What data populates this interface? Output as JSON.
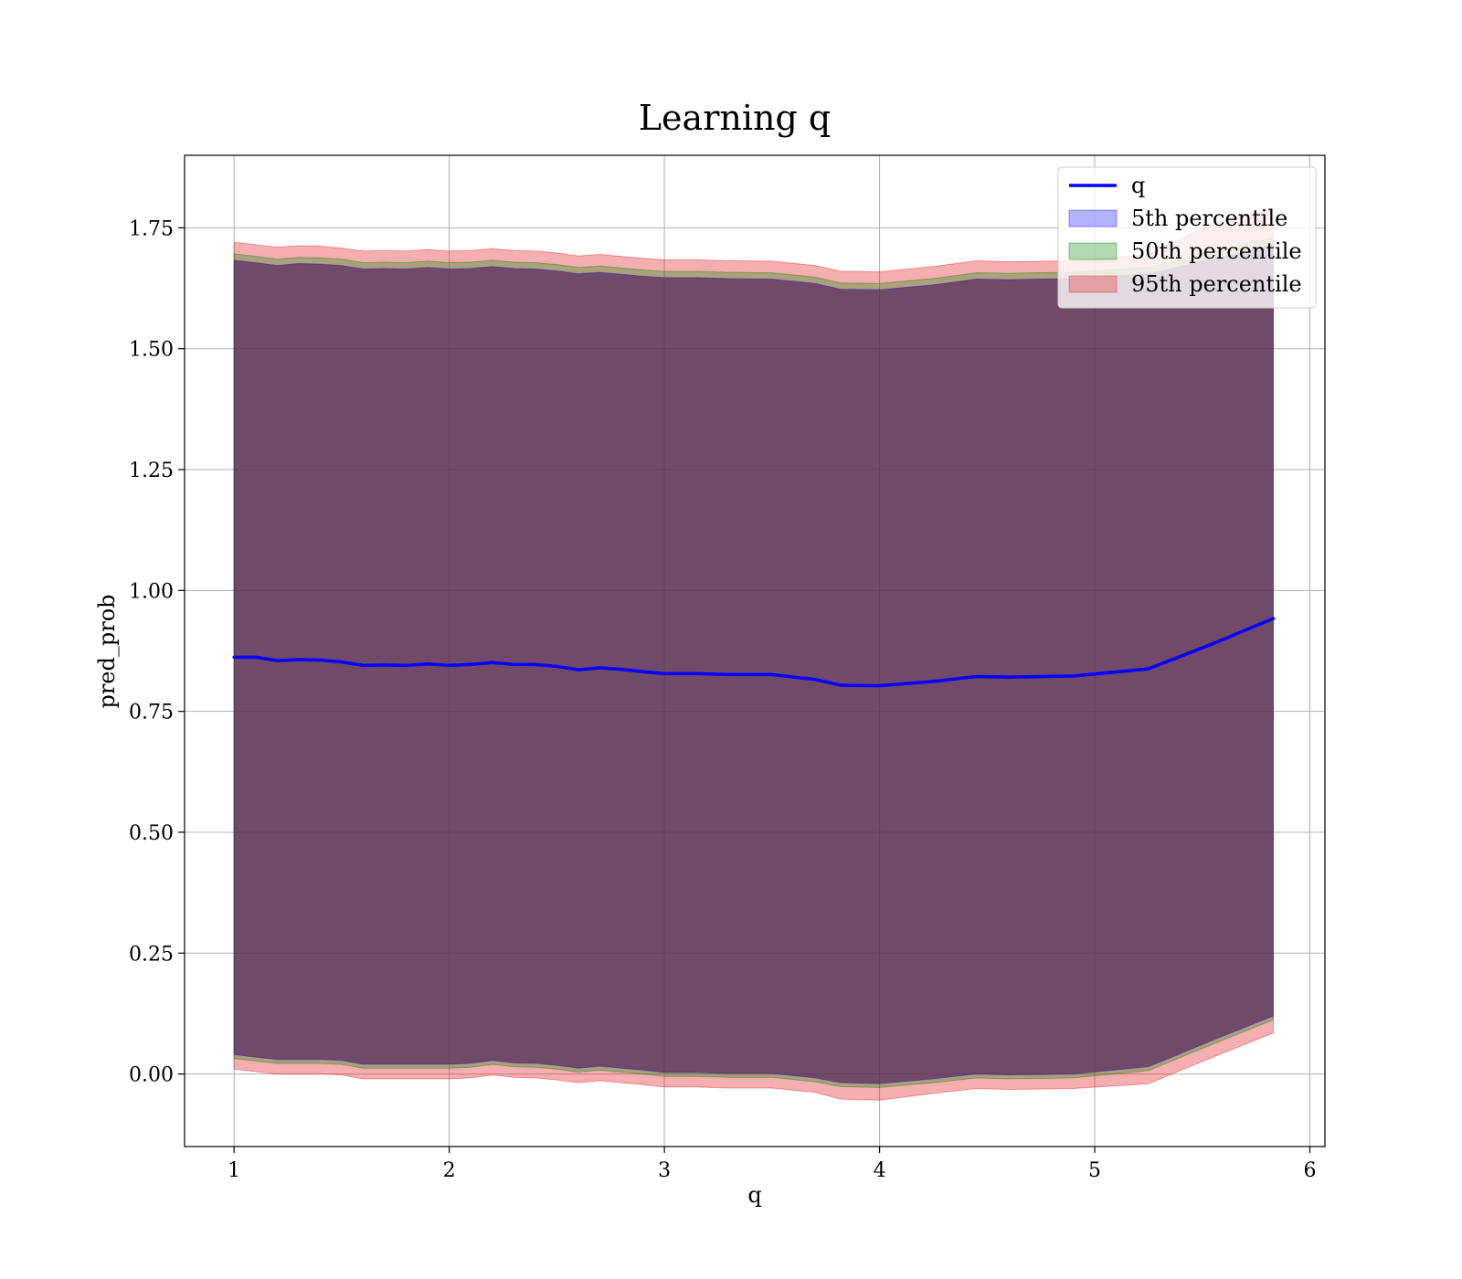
{
  "chart_data": {
    "type": "area",
    "title": "Learning q",
    "xlabel": "q",
    "ylabel": "pred_prob",
    "xlim": [
      0.77,
      6.07
    ],
    "ylim": [
      -0.15,
      1.9
    ],
    "xticks": [
      1,
      2,
      3,
      4,
      5,
      6
    ],
    "yticks": [
      0.0,
      0.25,
      0.5,
      0.75,
      1.0,
      1.25,
      1.5,
      1.75
    ],
    "ytick_labels": [
      "0.00",
      "0.25",
      "0.50",
      "0.75",
      "1.00",
      "1.25",
      "1.50",
      "1.75"
    ],
    "grid": true,
    "legend_position": "top-right",
    "x": [
      1.0,
      1.1,
      1.2,
      1.3,
      1.4,
      1.5,
      1.6,
      1.7,
      1.8,
      1.9,
      2.0,
      2.1,
      2.2,
      2.3,
      2.4,
      2.5,
      2.6,
      2.7,
      2.8,
      2.9,
      3.0,
      3.15,
      3.3,
      3.5,
      3.7,
      3.82,
      4.0,
      4.25,
      4.45,
      4.6,
      4.9,
      5.25,
      5.55,
      5.83
    ],
    "line": {
      "name": "q",
      "color": "#0000ff",
      "values": [
        0.862,
        0.862,
        0.855,
        0.857,
        0.856,
        0.852,
        0.845,
        0.846,
        0.845,
        0.848,
        0.845,
        0.847,
        0.851,
        0.847,
        0.847,
        0.843,
        0.836,
        0.84,
        0.837,
        0.832,
        0.828,
        0.828,
        0.826,
        0.826,
        0.816,
        0.804,
        0.803,
        0.812,
        0.822,
        0.821,
        0.823,
        0.838,
        0.89,
        0.942
      ]
    },
    "bands": [
      {
        "name": "5th percentile",
        "color": "#0000ff",
        "opacity": 0.3,
        "lower": [
          0.04,
          0.035,
          0.03,
          0.03,
          0.03,
          0.028,
          0.02,
          0.02,
          0.02,
          0.02,
          0.02,
          0.022,
          0.028,
          0.023,
          0.022,
          0.018,
          0.012,
          0.016,
          0.012,
          0.008,
          0.003,
          0.003,
          0.001,
          0.001,
          -0.008,
          -0.018,
          -0.02,
          -0.01,
          0.0,
          -0.002,
          0.0,
          0.015,
          0.07,
          0.12
        ],
        "upper": [
          1.683,
          1.678,
          1.672,
          1.676,
          1.675,
          1.672,
          1.665,
          1.666,
          1.665,
          1.668,
          1.665,
          1.666,
          1.67,
          1.666,
          1.665,
          1.661,
          1.655,
          1.658,
          1.654,
          1.65,
          1.647,
          1.647,
          1.645,
          1.644,
          1.635,
          1.623,
          1.622,
          1.632,
          1.644,
          1.643,
          1.645,
          1.655,
          1.685,
          1.715
        ]
      },
      {
        "name": "50th percentile",
        "color": "#008000",
        "opacity": 0.3,
        "lower": [
          0.032,
          0.027,
          0.022,
          0.022,
          0.022,
          0.02,
          0.012,
          0.012,
          0.012,
          0.012,
          0.012,
          0.014,
          0.02,
          0.015,
          0.014,
          0.01,
          0.004,
          0.008,
          0.004,
          0.0,
          -0.005,
          -0.005,
          -0.007,
          -0.007,
          -0.016,
          -0.026,
          -0.028,
          -0.018,
          -0.008,
          -0.01,
          -0.008,
          0.007,
          0.062,
          0.112
        ],
        "upper": [
          1.696,
          1.691,
          1.685,
          1.689,
          1.688,
          1.685,
          1.678,
          1.679,
          1.678,
          1.681,
          1.678,
          1.679,
          1.683,
          1.679,
          1.678,
          1.674,
          1.668,
          1.671,
          1.667,
          1.663,
          1.66,
          1.66,
          1.658,
          1.657,
          1.648,
          1.636,
          1.635,
          1.645,
          1.657,
          1.656,
          1.658,
          1.668,
          1.7,
          1.73
        ]
      },
      {
        "name": "95th percentile",
        "color": "#e31a1c",
        "opacity": 0.35,
        "lower": [
          0.01,
          0.005,
          0.0,
          0.0,
          0.0,
          -0.002,
          -0.01,
          -0.01,
          -0.01,
          -0.01,
          -0.01,
          -0.008,
          -0.002,
          -0.007,
          -0.008,
          -0.012,
          -0.018,
          -0.014,
          -0.018,
          -0.022,
          -0.027,
          -0.027,
          -0.029,
          -0.029,
          -0.038,
          -0.052,
          -0.054,
          -0.04,
          -0.03,
          -0.032,
          -0.03,
          -0.02,
          0.035,
          0.085
        ],
        "upper": [
          1.72,
          1.715,
          1.71,
          1.713,
          1.712,
          1.708,
          1.702,
          1.703,
          1.702,
          1.705,
          1.702,
          1.703,
          1.707,
          1.703,
          1.702,
          1.698,
          1.692,
          1.695,
          1.691,
          1.687,
          1.684,
          1.684,
          1.682,
          1.681,
          1.672,
          1.66,
          1.659,
          1.67,
          1.682,
          1.68,
          1.682,
          1.695,
          1.76,
          1.79
        ]
      }
    ],
    "legend": [
      {
        "label": "q",
        "kind": "line",
        "color": "#0000ff"
      },
      {
        "label": "5th percentile",
        "kind": "patch",
        "color": "#0000ff"
      },
      {
        "label": "50th percentile",
        "kind": "patch",
        "color": "#008000"
      },
      {
        "label": "95th percentile",
        "kind": "patch",
        "color": "#e31a1c"
      }
    ]
  }
}
